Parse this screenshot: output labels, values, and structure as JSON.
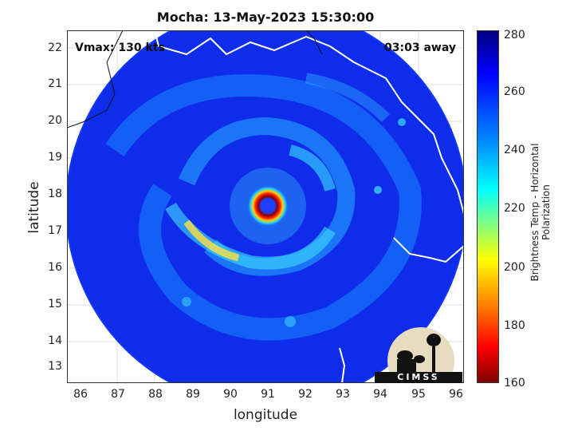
{
  "title": "Mocha: 13-May-2023 15:30:00",
  "annotations": {
    "vmax": "Vmax: 130 kts",
    "time_away": "03:03 away"
  },
  "axes": {
    "xlabel": "longitude",
    "ylabel": "latitude",
    "xticks": [
      "86",
      "87",
      "88",
      "89",
      "90",
      "91",
      "92",
      "93",
      "94",
      "95",
      "96"
    ],
    "yticks": [
      "22",
      "21",
      "20",
      "19",
      "18",
      "17",
      "16",
      "15",
      "14",
      "13"
    ]
  },
  "colorbar": {
    "label": "Brightness Temp - Horizontal Polarization",
    "ticks": [
      "280",
      "260",
      "240",
      "220",
      "200",
      "180",
      "160"
    ],
    "range": [
      160,
      280
    ]
  },
  "logo": {
    "text": "CIMSS"
  },
  "map": {
    "lon_range": [
      85.6,
      96.1
    ],
    "lat_range": [
      12.5,
      22.5
    ],
    "storm_center": {
      "lon": 90.95,
      "lat": 17.55
    }
  }
}
